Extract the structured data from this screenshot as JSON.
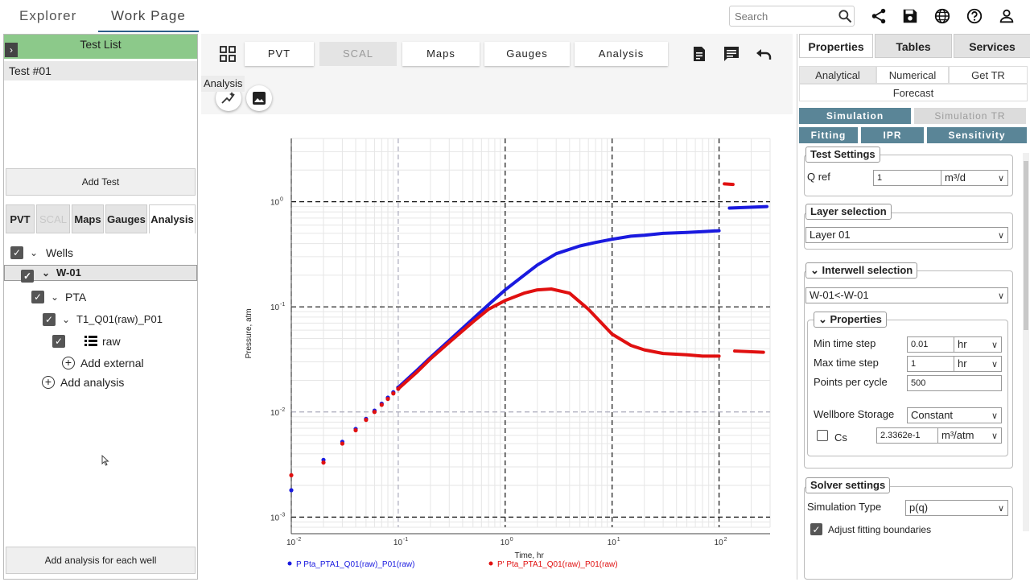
{
  "topbar": {
    "explorer": "Explorer",
    "work_page": "Work Page",
    "search_placeholder": "Search"
  },
  "left": {
    "test_list_title": "Test List",
    "tests": [
      "Test #01"
    ],
    "add_test": "Add Test",
    "tabs": [
      "PVT",
      "SCAL",
      "Maps",
      "Gauges",
      "Analysis"
    ],
    "tree": {
      "wells": "Wells",
      "well": "W-01",
      "pta": "PTA",
      "analysis_name": "T1_Q01(raw)_P01",
      "raw": "raw",
      "add_external": "Add external",
      "add_analysis": "Add analysis"
    },
    "add_analysis_each": "Add analysis for each well"
  },
  "center": {
    "tabs": [
      "PVT",
      "SCAL",
      "Maps",
      "Gauges",
      "Analysis"
    ],
    "tooltip": "Analysis"
  },
  "right": {
    "tabs": [
      "Properties",
      "Tables",
      "Services"
    ],
    "subtabs": [
      "Analytical",
      "Numerical",
      "Get TR",
      "Forecast"
    ],
    "buttons": [
      "Simulation",
      "Simulation TR",
      "Fitting",
      "IPR",
      "Sensitivity"
    ],
    "test_settings": {
      "title": "Test Settings",
      "q_ref_label": "Q ref",
      "q_ref_value": "1",
      "q_ref_unit": "m³/d"
    },
    "layer_selection": {
      "title": "Layer selection",
      "value": "Layer 01"
    },
    "interwell": {
      "title": "Interwell selection",
      "value": "W-01<-W-01",
      "properties_title": "Properties",
      "min_time_step_label": "Min time step",
      "min_time_step_value": "0.01",
      "min_time_step_unit": "hr",
      "max_time_step_label": "Max time step",
      "max_time_step_value": "1",
      "max_time_step_unit": "hr",
      "points_label": "Points per cycle",
      "points_value": "500",
      "wellbore_label": "Wellbore Storage",
      "wellbore_value": "Constant",
      "cs_label": "Cs",
      "cs_value": "2.3362e-1",
      "cs_unit": "m³/atm"
    },
    "solver": {
      "title": "Solver settings",
      "sim_type_label": "Simulation Type",
      "sim_type_value": "p(q)",
      "adjust_label": "Adjust fitting boundaries"
    }
  },
  "chart_data": {
    "type": "scatter",
    "xlabel": "Time, hr",
    "ylabel": "Pressure, atm",
    "xscale": "log",
    "yscale": "log",
    "xlim": [
      0.01,
      300
    ],
    "ylim": [
      0.0008,
      4
    ],
    "x_ticks": [
      "10^-2",
      "10^-1",
      "10^0",
      "10^1",
      "10^2"
    ],
    "y_ticks": [
      "10^-3",
      "10^-2",
      "10^-1",
      "10^0"
    ],
    "grid": true,
    "legend_position": "bottom",
    "series": [
      {
        "name": "P Pta_PTA1_Q01(raw)_P01(raw)",
        "color": "#1a1adf",
        "x": [
          0.01,
          0.02,
          0.03,
          0.04,
          0.05,
          0.06,
          0.07,
          0.08,
          0.09,
          0.1,
          0.15,
          0.2,
          0.3,
          0.5,
          0.7,
          1,
          1.5,
          2,
          3,
          5,
          7,
          10,
          15,
          20,
          30,
          50,
          70,
          100,
          110
        ],
        "y": [
          0.0018,
          0.0035,
          0.0052,
          0.0069,
          0.0086,
          0.0103,
          0.012,
          0.0137,
          0.0154,
          0.0171,
          0.025,
          0.033,
          0.048,
          0.077,
          0.105,
          0.145,
          0.2,
          0.25,
          0.32,
          0.38,
          0.41,
          0.44,
          0.47,
          0.48,
          0.5,
          0.51,
          0.52,
          0.53,
          0.54
        ]
      },
      {
        "name": "P' Pta_PTA1_Q01(raw)_P01(raw)",
        "color": "#e01010",
        "x": [
          0.01,
          0.02,
          0.03,
          0.04,
          0.05,
          0.06,
          0.07,
          0.08,
          0.09,
          0.1,
          0.15,
          0.2,
          0.3,
          0.5,
          0.7,
          1,
          1.5,
          2,
          2.7,
          4,
          6,
          10,
          15,
          20,
          30,
          50,
          70,
          100,
          110
        ],
        "y": [
          0.0025,
          0.0033,
          0.005,
          0.0067,
          0.0084,
          0.01,
          0.0117,
          0.0133,
          0.015,
          0.0166,
          0.024,
          0.032,
          0.046,
          0.072,
          0.095,
          0.115,
          0.135,
          0.145,
          0.148,
          0.135,
          0.095,
          0.055,
          0.043,
          0.039,
          0.036,
          0.035,
          0.034,
          0.034,
          0.034
        ]
      }
    ]
  }
}
